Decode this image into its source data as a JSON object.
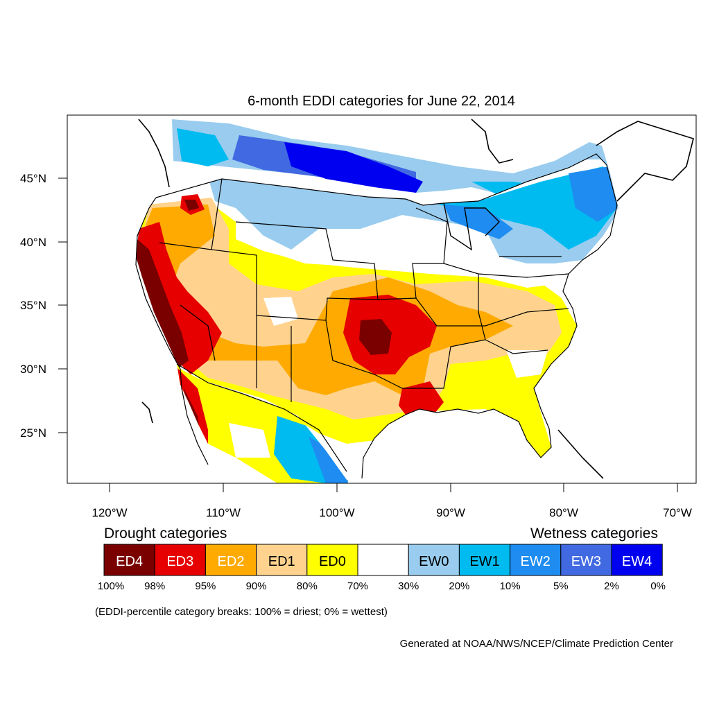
{
  "title": "6-month EDDI categories for June 22, 2014",
  "lat_labels": [
    "45°N",
    "40°N",
    "35°N",
    "30°N",
    "25°N"
  ],
  "lon_labels": [
    "120°W",
    "110°W",
    "100°W",
    "90°W",
    "80°W",
    "70°W"
  ],
  "legend": {
    "drought_heading": "Drought categories",
    "wetness_heading": "Wetness categories",
    "boxes": [
      {
        "label": "ED4",
        "color": "#7a0000"
      },
      {
        "label": "ED3",
        "color": "#e60000"
      },
      {
        "label": "ED2",
        "color": "#ffaa00"
      },
      {
        "label": "ED1",
        "color": "#ffd38e"
      },
      {
        "label": "ED0",
        "color": "#ffff00"
      },
      {
        "label": "",
        "color": "#ffffff"
      },
      {
        "label": "EW0",
        "color": "#99ccee"
      },
      {
        "label": "EW1",
        "color": "#00bbf0"
      },
      {
        "label": "EW2",
        "color": "#1e8cf0"
      },
      {
        "label": "EW3",
        "color": "#4169e1"
      },
      {
        "label": "EW4",
        "color": "#0000f0"
      }
    ],
    "breaks": [
      "100%",
      "98%",
      "95%",
      "90%",
      "80%",
      "70%",
      "30%",
      "20%",
      "10%",
      "5%",
      "2%",
      "0%"
    ]
  },
  "footnote": "(EDDI-percentile category breaks: 100% = driest; 0% = wettest)",
  "credit": "Generated at NOAA/NWS/NCEP/Climate Prediction Center"
}
